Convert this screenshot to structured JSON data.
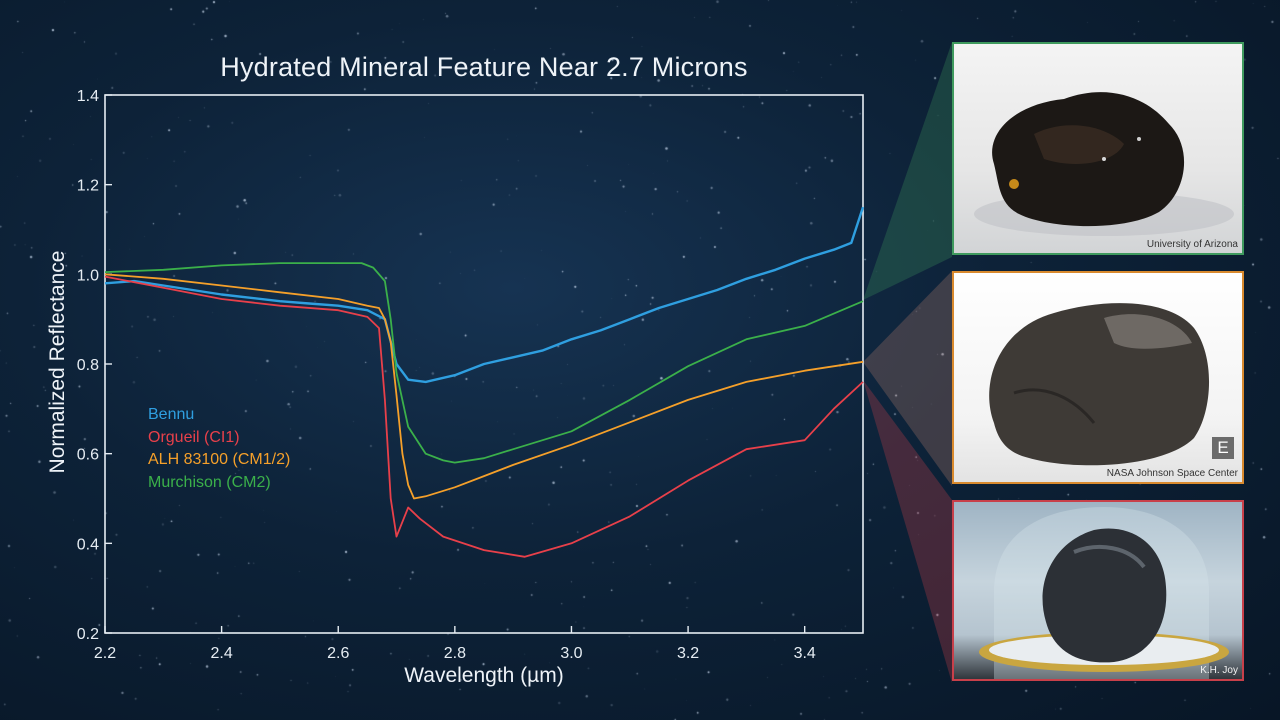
{
  "chart_data": {
    "type": "line",
    "title": "Hydrated Mineral Feature Near 2.7 Microns",
    "xlabel": "Wavelength (µm)",
    "ylabel": "Normalized Reflectance",
    "xlim": [
      2.2,
      3.5
    ],
    "ylim": [
      0.2,
      1.4
    ],
    "x_ticks": [
      "2.2",
      "2.4",
      "2.6",
      "2.8",
      "3.0",
      "3.2",
      "3.4"
    ],
    "y_ticks": [
      "0.2",
      "0.4",
      "0.6",
      "0.8",
      "1.0",
      "1.2",
      "1.4"
    ],
    "grid": false,
    "legend_position": "left",
    "series": [
      {
        "name": "Bennu",
        "color": "#2f9fe0",
        "x": [
          2.2,
          2.25,
          2.3,
          2.4,
          2.5,
          2.55,
          2.6,
          2.65,
          2.68,
          2.7,
          2.72,
          2.75,
          2.8,
          2.85,
          2.9,
          2.95,
          3.0,
          3.05,
          3.1,
          3.15,
          3.2,
          3.25,
          3.3,
          3.35,
          3.4,
          3.45,
          3.48,
          3.5
        ],
        "y": [
          0.98,
          0.985,
          0.975,
          0.955,
          0.94,
          0.935,
          0.93,
          0.92,
          0.9,
          0.8,
          0.765,
          0.76,
          0.775,
          0.8,
          0.815,
          0.83,
          0.855,
          0.875,
          0.9,
          0.925,
          0.945,
          0.965,
          0.99,
          1.01,
          1.035,
          1.055,
          1.07,
          1.15
        ]
      },
      {
        "name": "Orgueil (CI1)",
        "color": "#e8404a",
        "x": [
          2.2,
          2.3,
          2.4,
          2.5,
          2.6,
          2.65,
          2.67,
          2.68,
          2.69,
          2.7,
          2.72,
          2.74,
          2.78,
          2.85,
          2.92,
          3.0,
          3.1,
          3.2,
          3.3,
          3.4,
          3.45,
          3.5
        ],
        "y": [
          0.995,
          0.97,
          0.945,
          0.93,
          0.92,
          0.905,
          0.88,
          0.72,
          0.5,
          0.415,
          0.48,
          0.455,
          0.415,
          0.385,
          0.37,
          0.4,
          0.46,
          0.54,
          0.61,
          0.63,
          0.7,
          0.76
        ]
      },
      {
        "name": "ALH 83100 (CM1/2)",
        "color": "#f5a02a",
        "x": [
          2.2,
          2.3,
          2.4,
          2.5,
          2.6,
          2.65,
          2.67,
          2.68,
          2.69,
          2.7,
          2.71,
          2.72,
          2.73,
          2.75,
          2.8,
          2.85,
          2.9,
          3.0,
          3.1,
          3.2,
          3.3,
          3.4,
          3.5
        ],
        "y": [
          1.0,
          0.99,
          0.975,
          0.96,
          0.945,
          0.93,
          0.925,
          0.9,
          0.85,
          0.73,
          0.6,
          0.53,
          0.5,
          0.505,
          0.525,
          0.55,
          0.575,
          0.62,
          0.67,
          0.72,
          0.76,
          0.785,
          0.805
        ]
      },
      {
        "name": "Murchison (CM2)",
        "color": "#3bb04a",
        "x": [
          2.2,
          2.3,
          2.4,
          2.5,
          2.6,
          2.64,
          2.66,
          2.68,
          2.69,
          2.7,
          2.72,
          2.75,
          2.78,
          2.8,
          2.85,
          2.9,
          3.0,
          3.1,
          3.2,
          3.3,
          3.4,
          3.5
        ],
        "y": [
          1.005,
          1.01,
          1.02,
          1.025,
          1.025,
          1.025,
          1.015,
          0.985,
          0.9,
          0.78,
          0.66,
          0.6,
          0.585,
          0.58,
          0.59,
          0.61,
          0.65,
          0.72,
          0.795,
          0.855,
          0.885,
          0.94
        ]
      }
    ]
  },
  "photos": [
    {
      "credit": "University of Arizona",
      "frame_color": "#3f9a5e"
    },
    {
      "credit": "NASA Johnson Space Center",
      "frame_color": "#d98a2e",
      "badge": "E"
    },
    {
      "credit": "K.H. Joy",
      "frame_color": "#c8404a"
    }
  ]
}
